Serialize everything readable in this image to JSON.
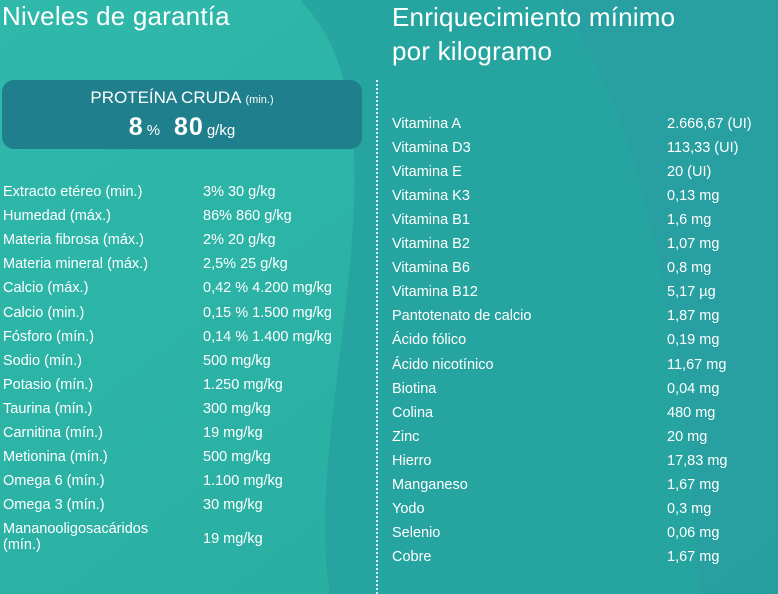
{
  "left_title": "Niveles de garantía",
  "right_title_line1": "Enriquecimiento mínimo",
  "right_title_line2": "por kilogramo",
  "protein": {
    "label": "PROTEÍNA CRUDA",
    "qualifier": "(min.)",
    "percent_value": "8",
    "percent_unit": "%",
    "amount_value": "80",
    "amount_unit": "g/kg"
  },
  "guarantees": [
    {
      "name": "Extracto etéreo (min.)",
      "value": "3% 30 g/kg"
    },
    {
      "name": "Humedad (máx.)",
      "value": "86% 860 g/kg"
    },
    {
      "name": "Materia fibrosa (máx.)",
      "value": "2% 20 g/kg"
    },
    {
      "name": "Materia mineral (máx.)",
      "value": "2,5% 25 g/kg"
    },
    {
      "name": "Calcio (máx.)",
      "value": "0,42 % 4.200 mg/kg"
    },
    {
      "name": "Calcio (min.)",
      "value": "0,15 % 1.500 mg/kg"
    },
    {
      "name": "Fósforo (mín.)",
      "value": "0,14 % 1.400 mg/kg"
    },
    {
      "name": "Sodio (mín.)",
      "value": "500 mg/kg"
    },
    {
      "name": "Potasio (mín.)",
      "value": "1.250 mg/kg"
    },
    {
      "name": "Taurina (mín.)",
      "value": "300 mg/kg"
    },
    {
      "name": "Carnitina (mín.)",
      "value": "19 mg/kg"
    },
    {
      "name": "Metionina (mín.)",
      "value": "500 mg/kg"
    },
    {
      "name": "Omega 6 (mín.)",
      "value": "1.100 mg/kg"
    },
    {
      "name": "Omega 3 (mín.)",
      "value": "30 mg/kg"
    },
    {
      "name": "Mananooligosacáridos (mín.)",
      "value": "19 mg/kg"
    }
  ],
  "enrichment": [
    {
      "name": "Vitamina A",
      "value": "2.666,67 (UI)"
    },
    {
      "name": "Vitamina D3",
      "value": "113,33 (UI)"
    },
    {
      "name": "Vitamina E",
      "value": "20 (UI)"
    },
    {
      "name": "Vitamina K3",
      "value": "0,13 mg"
    },
    {
      "name": "Vitamina B1",
      "value": "1,6 mg"
    },
    {
      "name": "Vitamina B2",
      "value": "1,07 mg"
    },
    {
      "name": "Vitamina B6",
      "value": "0,8 mg"
    },
    {
      "name": "Vitamina B12",
      "value": "5,17 µg"
    },
    {
      "name": "Pantotenato de calcio",
      "value": "1,87 mg"
    },
    {
      "name": "Ácido fólico",
      "value": "0,19 mg"
    },
    {
      "name": "Ácido nicotínico",
      "value": "11,67 mg"
    },
    {
      "name": "Biotina",
      "value": "0,04 mg"
    },
    {
      "name": "Colina",
      "value": "480 mg"
    },
    {
      "name": "Zinc",
      "value": "20 mg"
    },
    {
      "name": "Hierro",
      "value": "17,83 mg"
    },
    {
      "name": "Manganeso",
      "value": "1,67 mg"
    },
    {
      "name": "Yodo",
      "value": "0,3 mg"
    },
    {
      "name": "Selenio",
      "value": "0,06 mg"
    },
    {
      "name": "Cobre",
      "value": "1,67 mg"
    }
  ],
  "colors": {
    "background_left": "#2db5a8",
    "background_right": "#25a49f",
    "protein_box": "#1f7f8c",
    "text": "#ffffff"
  }
}
